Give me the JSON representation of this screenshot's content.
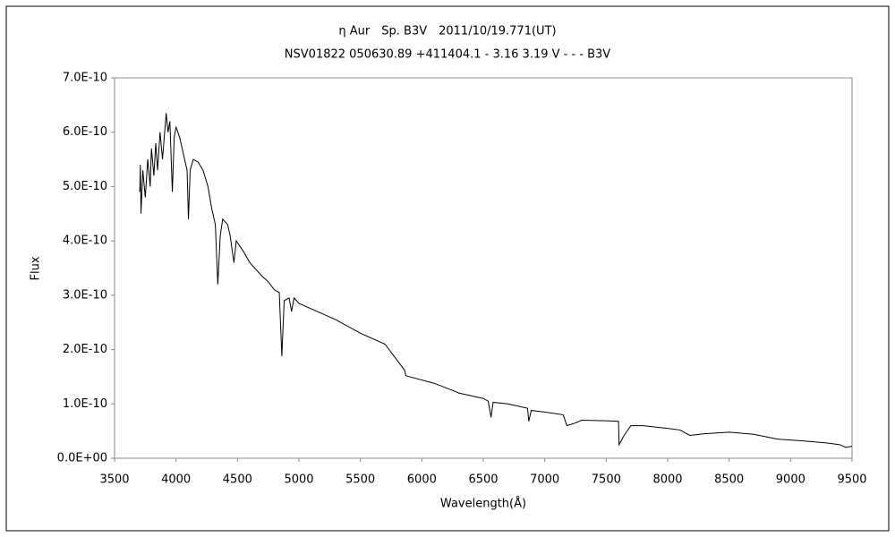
{
  "chart_data": {
    "type": "line",
    "title": "η Aur　Sp. B3V　2011/10/19.771(UT)",
    "subtitle": "NSV01822 050630.89 +411404.1 - 3.16 3.19 V - - - B3V",
    "x_label": "Wavelength(Å)",
    "y_label": "Flux",
    "color": "#000000",
    "xlim": [
      3500,
      9500
    ],
    "xticks": [
      3500,
      4000,
      4500,
      5000,
      5500,
      6000,
      6500,
      7000,
      7500,
      8000,
      8500,
      9000,
      9500
    ],
    "ylim": [
      0,
      7e-10
    ],
    "yticks": [
      {
        "value": 0,
        "label": "0.0E+00"
      },
      {
        "value": 1e-10,
        "label": "1.0E-10"
      },
      {
        "value": 2e-10,
        "label": "2.0E-10"
      },
      {
        "value": 3e-10,
        "label": "3.0E-10"
      },
      {
        "value": 4e-10,
        "label": "4.0E-10"
      },
      {
        "value": 5e-10,
        "label": "5.0E-10"
      },
      {
        "value": 6e-10,
        "label": "6.0E-10"
      },
      {
        "value": 7e-10,
        "label": "7.0E-10"
      }
    ],
    "x": [
      3705,
      3710,
      3715,
      3730,
      3750,
      3770,
      3790,
      3800,
      3820,
      3835,
      3850,
      3870,
      3890,
      3920,
      3935,
      3950,
      3970,
      3985,
      4000,
      4030,
      4060,
      4090,
      4101,
      4115,
      4140,
      4180,
      4220,
      4260,
      4290,
      4320,
      4340,
      4360,
      4380,
      4420,
      4440,
      4471,
      4490,
      4550,
      4600,
      4700,
      4750,
      4800,
      4840,
      4861,
      4880,
      4920,
      4940,
      4960,
      5000,
      5100,
      5300,
      5500,
      5700,
      5860,
      5870,
      5900,
      6100,
      6270,
      6300,
      6500,
      6540,
      6563,
      6580,
      6700,
      6860,
      6870,
      6890,
      7000,
      7150,
      7180,
      7250,
      7300,
      7500,
      7600,
      7605,
      7640,
      7700,
      7800,
      8000,
      8100,
      8180,
      8300,
      8500,
      8700,
      8900,
      9100,
      9300,
      9400,
      9450,
      9500
    ],
    "values": [
      4.9e-10,
      5.4e-10,
      4.5e-10,
      5.3e-10,
      4.8e-10,
      5.5e-10,
      5e-10,
      5.7e-10,
      5.2e-10,
      5.8e-10,
      5.3e-10,
      6e-10,
      5.5e-10,
      6.35e-10,
      6e-10,
      6.2e-10,
      4.9e-10,
      5.9e-10,
      6.1e-10,
      5.9e-10,
      5.6e-10,
      5.3e-10,
      4.4e-10,
      5.3e-10,
      5.5e-10,
      5.45e-10,
      5.3e-10,
      5e-10,
      4.6e-10,
      4.3e-10,
      3.2e-10,
      4.1e-10,
      4.4e-10,
      4.3e-10,
      4.1e-10,
      3.6e-10,
      4e-10,
      3.8e-10,
      3.6e-10,
      3.35e-10,
      3.25e-10,
      3.1e-10,
      3.05e-10,
      1.88e-10,
      2.9e-10,
      2.95e-10,
      2.7e-10,
      2.95e-10,
      2.85e-10,
      2.75e-10,
      2.55e-10,
      2.3e-10,
      2.1e-10,
      1.62e-10,
      1.52e-10,
      1.5e-10,
      1.38e-10,
      1.23e-10,
      1.2e-10,
      1.1e-10,
      1.05e-10,
      7.5e-11,
      1.03e-10,
      1e-10,
      9.2e-11,
      6.8e-11,
      8.8e-11,
      8.5e-11,
      8e-11,
      6e-11,
      6.5e-11,
      7e-11,
      6.9e-11,
      6.8e-11,
      2.5e-11,
      4e-11,
      6e-11,
      6e-11,
      5.5e-11,
      5.2e-11,
      4.2e-11,
      4.5e-11,
      4.8e-11,
      4.4e-11,
      3.5e-11,
      3.2e-11,
      2.8e-11,
      2.5e-11,
      2e-11,
      2.2e-11
    ]
  }
}
